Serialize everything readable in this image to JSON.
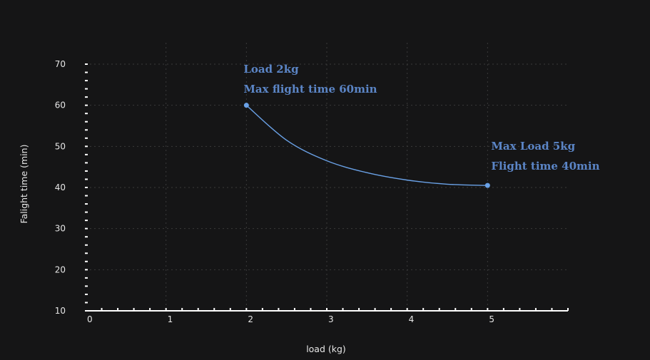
{
  "chart_data": {
    "type": "line",
    "xlabel": "load (kg)",
    "ylabel": "Falight time (min)",
    "xlim": [
      0,
      6
    ],
    "ylim": [
      10,
      70
    ],
    "xticks": [
      0,
      1,
      2,
      3,
      4,
      5
    ],
    "yticks": [
      10,
      20,
      30,
      40,
      50,
      60,
      70
    ],
    "grid": true,
    "series": [
      {
        "color": "#6aa1e6",
        "x": [
          2,
          2.5,
          3,
          3.5,
          4,
          4.5,
          5
        ],
        "y": [
          60,
          51.5,
          46.5,
          43.6,
          41.8,
          40.8,
          40.5
        ]
      }
    ],
    "annotations": [
      {
        "lines": [
          "Load 2kg",
          "Max flight time 60min"
        ],
        "x": 2,
        "y": 60
      },
      {
        "lines": [
          "Max Load 5kg",
          "Flight time 40min"
        ],
        "x": 5,
        "y": 40.5
      }
    ],
    "colors": {
      "background": "#151516",
      "axis": "#ffffff",
      "grid": "#3a3a3a",
      "line": "#6aa1e6",
      "annotation": "#5b85c6",
      "text": "#e6e6e6"
    }
  }
}
